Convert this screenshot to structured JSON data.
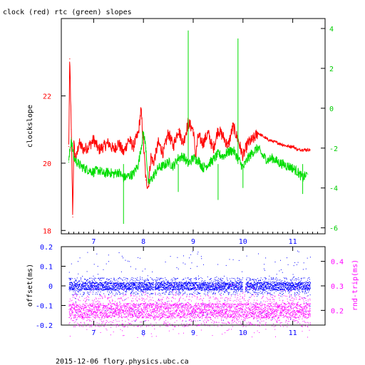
{
  "title": "clock (red) rtc (green) slopes",
  "footer": "2015-12-06 flory.physics.ubc.ca",
  "colors": {
    "clock": "#ff0000",
    "rtc": "#00dd00",
    "offset": "#0000ff",
    "roundtrip": "#ff00ff",
    "axis": "#000000"
  },
  "chart_data": [
    {
      "type": "line",
      "title": "clock (red) rtc (green) slopes",
      "ylabel": "clockslope",
      "xlim": [
        6.35,
        11.65
      ],
      "ylim": [
        17.9,
        24.3
      ],
      "y2lim": [
        -6.3,
        4.5
      ],
      "x_ticks": [
        "7",
        "8",
        "9",
        "10",
        "11"
      ],
      "y_ticks": [
        "18",
        "20",
        "22"
      ],
      "y2_ticks": [
        "-6",
        "-4",
        "-2",
        "0",
        "2",
        "4"
      ],
      "grid": false,
      "series": [
        {
          "name": "clock (red)",
          "axis": "left",
          "x": [
            6.5,
            6.52,
            6.55,
            6.58,
            6.6,
            6.62,
            6.65,
            6.7,
            6.8,
            6.9,
            7.0,
            7.1,
            7.2,
            7.3,
            7.4,
            7.5,
            7.6,
            7.7,
            7.8,
            7.9,
            7.95,
            8.0,
            8.05,
            8.1,
            8.15,
            8.2,
            8.3,
            8.4,
            8.5,
            8.6,
            8.7,
            8.8,
            8.9,
            9.0,
            9.05,
            9.1,
            9.2,
            9.3,
            9.4,
            9.5,
            9.6,
            9.7,
            9.8,
            9.9,
            10.0,
            10.1,
            10.2,
            10.3,
            10.5,
            10.7,
            10.9,
            11.0,
            11.1,
            11.2,
            11.35
          ],
          "y": [
            20.5,
            23.1,
            21.0,
            18.4,
            20.6,
            20.3,
            20.1,
            20.6,
            20.4,
            20.5,
            20.7,
            20.4,
            20.5,
            20.6,
            20.4,
            20.6,
            20.3,
            20.7,
            20.5,
            20.9,
            21.6,
            20.6,
            19.5,
            19.3,
            20.2,
            20.0,
            20.6,
            20.3,
            20.9,
            20.5,
            21.0,
            20.6,
            21.2,
            21.0,
            20.2,
            20.8,
            20.6,
            20.9,
            20.4,
            21.0,
            20.8,
            20.5,
            21.1,
            20.7,
            20.2,
            20.6,
            20.7,
            20.9,
            20.7,
            20.6,
            20.5,
            20.5,
            20.4,
            20.4,
            20.4
          ]
        },
        {
          "name": "rtc (green)",
          "axis": "right",
          "x": [
            6.5,
            6.55,
            6.6,
            6.7,
            6.8,
            6.9,
            7.0,
            7.1,
            7.2,
            7.3,
            7.4,
            7.5,
            7.6,
            7.7,
            7.8,
            7.9,
            8.0,
            8.05,
            8.1,
            8.2,
            8.3,
            8.4,
            8.5,
            8.6,
            8.7,
            8.8,
            8.9,
            9.0,
            9.1,
            9.2,
            9.3,
            9.4,
            9.5,
            9.6,
            9.7,
            9.8,
            9.9,
            10.0,
            10.1,
            10.2,
            10.3,
            10.4,
            10.5,
            10.6,
            10.7,
            10.8,
            10.9,
            11.0,
            11.1,
            11.2,
            11.3
          ],
          "y": [
            -2.7,
            -1.5,
            -2.5,
            -2.8,
            -3.0,
            -3.1,
            -3.2,
            -3.1,
            -3.3,
            -3.2,
            -3.3,
            -3.2,
            -3.5,
            -3.4,
            -3.3,
            -2.8,
            -1.2,
            -2.0,
            -3.8,
            -3.4,
            -3.0,
            -2.9,
            -2.7,
            -2.9,
            -2.5,
            -2.4,
            -2.8,
            -2.5,
            -2.6,
            -3.0,
            -2.8,
            -2.6,
            -2.3,
            -2.4,
            -2.2,
            -2.1,
            -2.5,
            -3.0,
            -2.5,
            -2.2,
            -2.0,
            -2.4,
            -2.6,
            -2.5,
            -2.7,
            -2.8,
            -2.9,
            -3.0,
            -3.2,
            -3.5,
            -3.3
          ]
        }
      ]
    },
    {
      "type": "scatter",
      "ylabel": "offset(ms)",
      "y2label": "rnd-trip(ms)",
      "xlim": [
        6.35,
        11.65
      ],
      "ylim": [
        -0.2,
        0.2
      ],
      "y2lim": [
        0.14,
        0.46
      ],
      "x_ticks": [
        "7",
        "8",
        "9",
        "10",
        "11"
      ],
      "y_ticks": [
        "0.2",
        "0.1",
        "0",
        "-0.1",
        "-0.2"
      ],
      "y2_ticks": [
        "0.4",
        "0.3",
        "0.2"
      ],
      "grid": false,
      "series": [
        {
          "name": "offset",
          "axis": "left",
          "center": 0.0,
          "band": 0.02,
          "x_range": [
            6.5,
            11.35
          ]
        },
        {
          "name": "rnd-trip",
          "axis": "right",
          "center": 0.2,
          "band": 0.03,
          "x_range": [
            6.5,
            11.35
          ]
        }
      ]
    }
  ]
}
